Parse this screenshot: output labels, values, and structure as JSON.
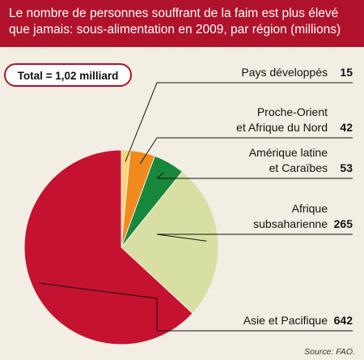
{
  "title": "Le nombre de personnes souffrant de la faim est plus élevé que jamais: sous-alimentation en 2009, par région (millions)",
  "source": "Source: FAO.",
  "colors": {
    "header_bg": "#b1122b",
    "background": "#f3eee4",
    "accent": "#b1122b"
  },
  "chart_data": {
    "type": "pie",
    "total_label": "Total = 1,02 milliard",
    "slices": [
      {
        "label": [
          "Pays développés"
        ],
        "value": 15,
        "color": "#f6d57e"
      },
      {
        "label": [
          "Proche-Orient",
          "et Afrique du Nord"
        ],
        "value": 42,
        "color": "#f08a1c"
      },
      {
        "label": [
          "Amérique latine",
          "et Caraïbes"
        ],
        "value": 53,
        "color": "#17873a"
      },
      {
        "label": [
          "Afrique",
          "subsaharienne"
        ],
        "value": 265,
        "color": "#d8dfa2"
      },
      {
        "label": [
          "Asie et Pacifique"
        ],
        "value": 642,
        "color": "#c41230"
      }
    ]
  }
}
